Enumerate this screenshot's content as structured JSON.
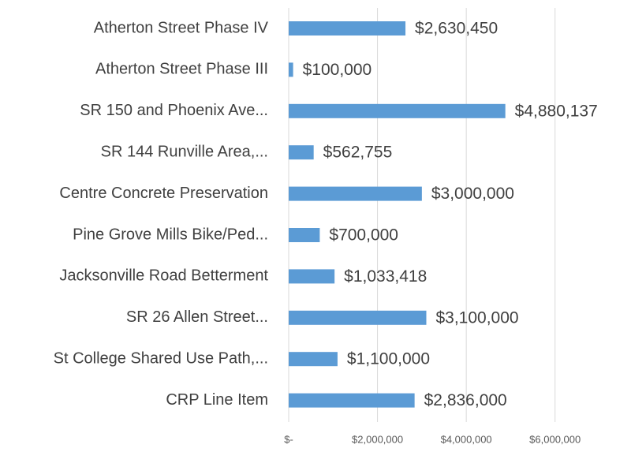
{
  "chart_data": {
    "type": "barh",
    "categories": [
      "Atherton Street Phase IV",
      "Atherton Street Phase III",
      "SR 150 and Phoenix Ave...",
      "SR 144 Runville Area,...",
      "Centre Concrete Preservation",
      "Pine Grove Mills Bike/Ped...",
      "Jacksonville Road Betterment",
      "SR 26 Allen Street...",
      "St College Shared Use Path,...",
      "CRP Line Item"
    ],
    "values": [
      2630450,
      100000,
      4880137,
      562755,
      3000000,
      700000,
      1033418,
      3100000,
      1100000,
      2836000
    ],
    "value_labels": [
      "$2,630,450",
      "$100,000",
      "$4,880,137",
      "$562,755",
      "$3,000,000",
      "$700,000",
      "$1,033,418",
      "$3,100,000",
      "$1,100,000",
      "$2,836,000"
    ],
    "color": "#5b9bd5",
    "xlim": [
      0,
      7000000
    ],
    "xticks": [
      {
        "value": 0,
        "label": "$-"
      },
      {
        "value": 2000000,
        "label": "$2,000,000"
      },
      {
        "value": 4000000,
        "label": "$4,000,000"
      },
      {
        "value": 6000000,
        "label": "$6,000,000"
      }
    ],
    "grid": true
  }
}
